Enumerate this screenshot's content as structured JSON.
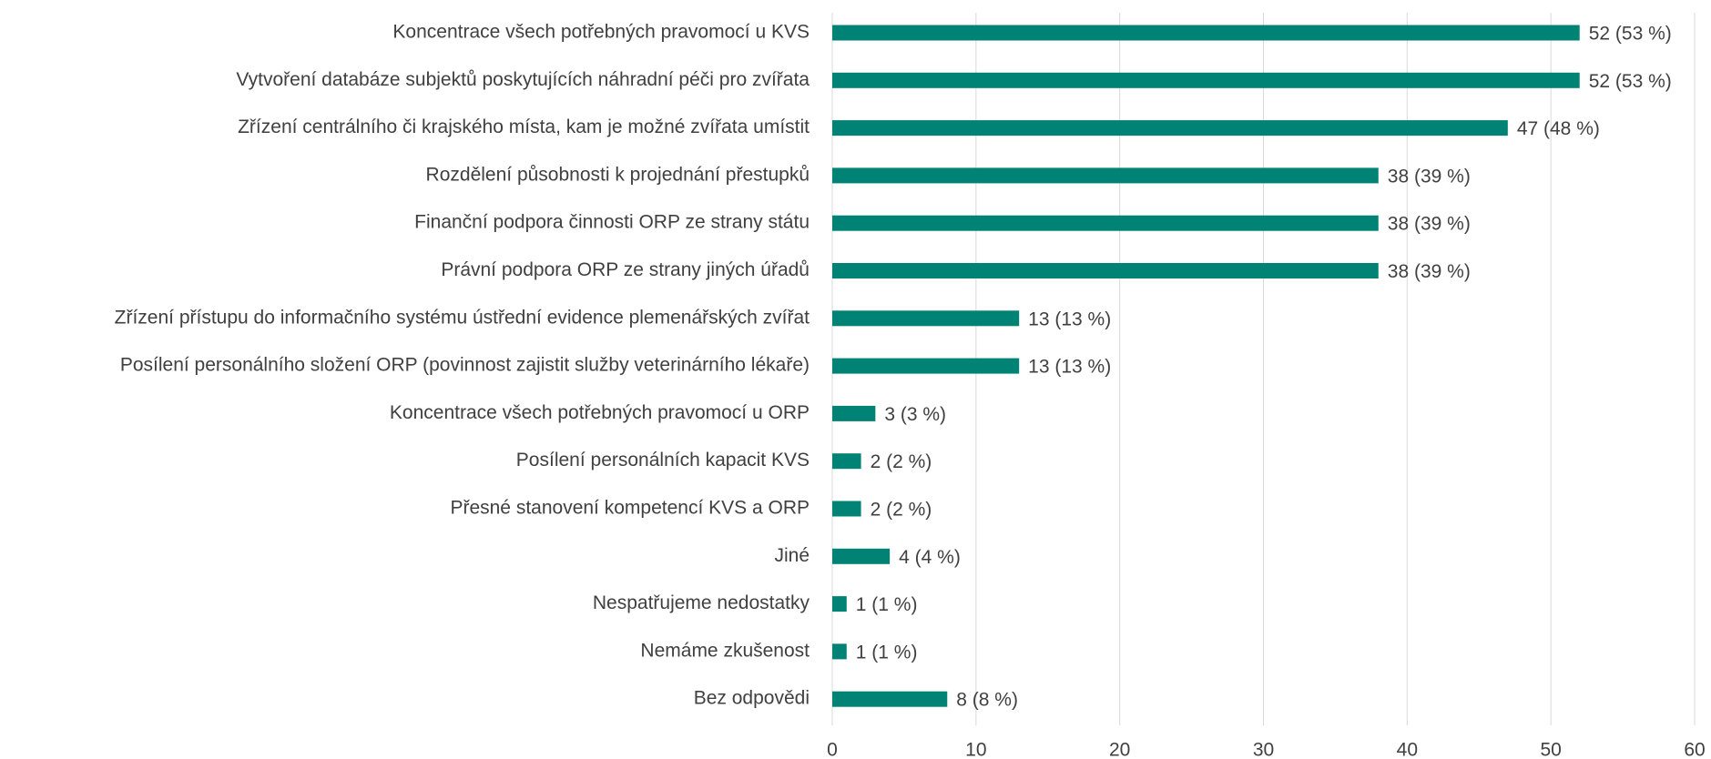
{
  "chart_data": {
    "type": "barh",
    "categories": [
      "Koncentrace všech potřebných pravomocí u KVS",
      "Vytvoření databáze subjektů poskytujících náhradní péči pro zvířata",
      "Zřízení centrálního či krajského místa, kam je možné zvířata umístit",
      "Rozdělení působnosti k projednání přestupků",
      "Finanční podpora činnosti ORP ze strany státu",
      "Právní podpora ORP ze strany jiných úřadů",
      "Zřízení přístupu do informačního systému ústřední evidence plemenářských zvířat",
      "Posílení personálního složení ORP (povinnost zajistit služby veterinárního lékaře)",
      "Koncentrace všech potřebných pravomocí u ORP",
      "Posílení personálních kapacit KVS",
      "Přesné stanovení kompetencí KVS a ORP",
      "Jiné",
      "Nespatřujeme nedostatky",
      "Nemáme zkušenost",
      "Bez odpovědi"
    ],
    "values": [
      52,
      52,
      47,
      38,
      38,
      38,
      13,
      13,
      3,
      2,
      2,
      4,
      1,
      1,
      8
    ],
    "value_labels": [
      "52 (53 %)",
      "52 (53 %)",
      "47 (48 %)",
      "38 (39 %)",
      "38 (39 %)",
      "38 (39 %)",
      "13 (13 %)",
      "13 (13 %)",
      "3 (3 %)",
      "2 (2 %)",
      "2 (2 %)",
      "4 (4 %)",
      "1 (1 %)",
      "1 (1 %)",
      "8 (8 %)"
    ],
    "color": "#008374",
    "xlim": [
      0,
      60
    ],
    "xticks": [
      0,
      10,
      20,
      30,
      40,
      50,
      60
    ],
    "grid": true
  }
}
